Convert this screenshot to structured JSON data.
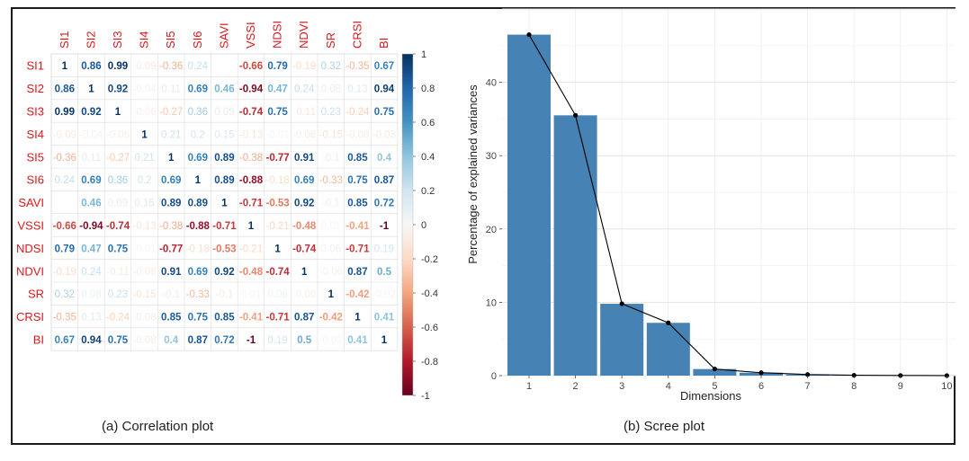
{
  "chart_data": [
    {
      "type": "heatmap",
      "caption": "(a) Correlation plot",
      "variables": [
        "SI1",
        "SI2",
        "SI3",
        "SI4",
        "SI5",
        "SI6",
        "SAVI",
        "VSSI",
        "NDSI",
        "NDVI",
        "SR",
        "CRSI",
        "BI"
      ],
      "matrix": [
        [
          1,
          0.86,
          0.99,
          -0.09,
          -0.36,
          0.24,
          null,
          -0.66,
          0.79,
          -0.19,
          0.32,
          -0.35,
          0.67
        ],
        [
          0.86,
          1,
          0.92,
          -0.04,
          0.11,
          0.69,
          0.46,
          -0.94,
          0.47,
          0.24,
          0.08,
          0.13,
          0.94
        ],
        [
          0.99,
          0.92,
          1,
          -0.06,
          -0.27,
          0.36,
          0.09,
          -0.74,
          0.75,
          -0.11,
          0.23,
          -0.24,
          0.75
        ],
        [
          -0.09,
          -0.04,
          -0.06,
          1,
          0.21,
          0.2,
          0.15,
          -0.13,
          -0.01,
          -0.08,
          -0.15,
          -0.08,
          -0.08
        ],
        [
          -0.36,
          0.11,
          -0.27,
          0.21,
          1,
          0.69,
          0.89,
          -0.38,
          -0.77,
          0.91,
          -0.1,
          0.85,
          0.4
        ],
        [
          0.24,
          0.69,
          0.36,
          0.2,
          0.69,
          1,
          0.89,
          -0.88,
          -0.18,
          0.69,
          -0.33,
          0.75,
          0.87
        ],
        [
          null,
          0.46,
          0.09,
          0.15,
          0.89,
          0.89,
          1,
          -0.71,
          -0.53,
          0.92,
          -0.1,
          0.85,
          0.72
        ],
        [
          -0.66,
          -0.94,
          -0.74,
          -0.13,
          -0.38,
          -0.88,
          -0.71,
          1,
          -0.21,
          -0.48,
          0.01,
          -0.41,
          -1
        ],
        [
          0.79,
          0.47,
          0.75,
          -0.01,
          -0.77,
          -0.18,
          -0.53,
          -0.21,
          1,
          -0.74,
          0.06,
          -0.71,
          0.19
        ],
        [
          -0.19,
          0.24,
          -0.11,
          -0.08,
          0.91,
          0.69,
          0.92,
          -0.48,
          -0.74,
          1,
          -0.06,
          0.87,
          0.5
        ],
        [
          0.32,
          0.08,
          0.23,
          -0.15,
          -0.1,
          -0.33,
          -0.1,
          0.01,
          0.06,
          -0.06,
          1,
          -0.42,
          -0.02
        ],
        [
          -0.35,
          0.13,
          -0.24,
          -0.08,
          0.85,
          0.75,
          0.85,
          -0.41,
          -0.71,
          0.87,
          -0.42,
          1,
          0.41
        ],
        [
          0.67,
          0.94,
          0.75,
          -0.08,
          0.4,
          0.87,
          0.72,
          -1,
          0.19,
          0.5,
          -0.02,
          0.41,
          1
        ]
      ],
      "colorbar_ticks": [
        "1",
        "0.8",
        "0.6",
        "0.4",
        "0.2",
        "0",
        "-0.2",
        "-0.4",
        "-0.6",
        "-0.8",
        "-1"
      ],
      "colors": {
        "positive": "#053061",
        "neutral": "#f7f7f7",
        "negative": "#67001f",
        "label": "#d7191c"
      }
    },
    {
      "type": "bar",
      "caption": "(b) Scree plot",
      "xlabel": "Dimensions",
      "ylabel": "Percentage of explained variances",
      "categories": [
        "1",
        "2",
        "3",
        "4",
        "5",
        "6",
        "7",
        "8",
        "9",
        "10"
      ],
      "values": [
        46.5,
        35.5,
        9.8,
        7.2,
        0.9,
        0.4,
        0.15,
        0.05,
        0.02,
        0.01
      ],
      "ylim": [
        0,
        50
      ],
      "yticks": [
        "0",
        "10",
        "20",
        "30",
        "40"
      ],
      "line_overlay": true,
      "grid": true,
      "colors": {
        "bar": "#4682b4",
        "line": "#000000"
      }
    }
  ]
}
